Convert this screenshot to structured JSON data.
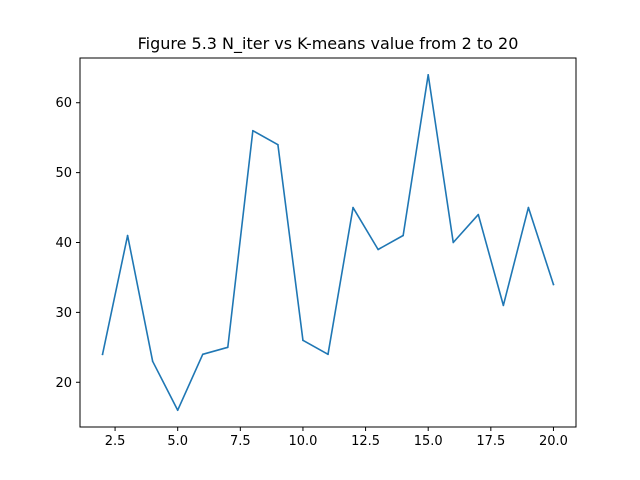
{
  "chart_data": {
    "type": "line",
    "title": "Figure 5.3 N_iter vs K-means value from 2 to 20",
    "xlabel": "",
    "ylabel": "",
    "x": [
      2,
      3,
      4,
      5,
      6,
      7,
      8,
      9,
      10,
      11,
      12,
      13,
      14,
      15,
      16,
      17,
      18,
      19,
      20
    ],
    "series": [
      {
        "values": [
          24,
          41,
          23,
          16,
          24,
          25,
          56,
          54,
          26,
          24,
          45,
          39,
          41,
          64,
          40,
          44,
          31,
          45,
          34
        ],
        "color": "#1f77b4"
      }
    ],
    "xlim": [
      1.1,
      20.9
    ],
    "ylim": [
      13.6,
      66.4
    ],
    "xticks": [
      2.5,
      5.0,
      7.5,
      10.0,
      12.5,
      15.0,
      17.5,
      20.0
    ],
    "xtick_labels": [
      "2.5",
      "5.0",
      "7.5",
      "10.0",
      "12.5",
      "15.0",
      "17.5",
      "20.0"
    ],
    "yticks": [
      20,
      30,
      40,
      50,
      60
    ],
    "ytick_labels": [
      "20",
      "30",
      "40",
      "50",
      "60"
    ],
    "grid": false,
    "legend": "none"
  }
}
